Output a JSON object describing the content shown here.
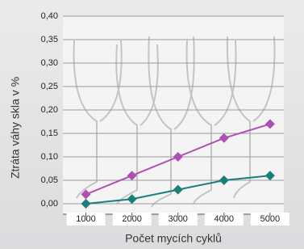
{
  "chart_data": {
    "type": "line",
    "x_label": "Počet mycích cyklů",
    "y_label": "Ztráta váhy skla v %",
    "x": [
      1000,
      2000,
      3000,
      4000,
      5000
    ],
    "series": [
      {
        "color": "#b04fb3",
        "values": [
          0.02,
          0.06,
          0.1,
          0.14,
          0.17
        ]
      },
      {
        "color": "#1a7f7a",
        "values": [
          0.0,
          0.01,
          0.03,
          0.05,
          0.06
        ]
      }
    ],
    "xlim": [
      500,
      5300
    ],
    "xticks": [
      1000,
      2000,
      3000,
      4000,
      5000
    ],
    "ylim": [
      0,
      0.4
    ],
    "yticks": [
      {
        "value": 0,
        "label": "0,00"
      },
      {
        "value": 0.05,
        "label": "0,05"
      },
      {
        "value": 0.1,
        "label": "0,10"
      },
      {
        "value": 0.15,
        "label": "0,15"
      },
      {
        "value": 0.2,
        "label": "0,20"
      },
      {
        "value": 0.25,
        "label": "0,25"
      },
      {
        "value": 0.3,
        "label": "0,30"
      },
      {
        "value": 0.35,
        "label": "0,35"
      },
      {
        "value": 0.4,
        "label": "0,40"
      }
    ],
    "grid": true
  }
}
